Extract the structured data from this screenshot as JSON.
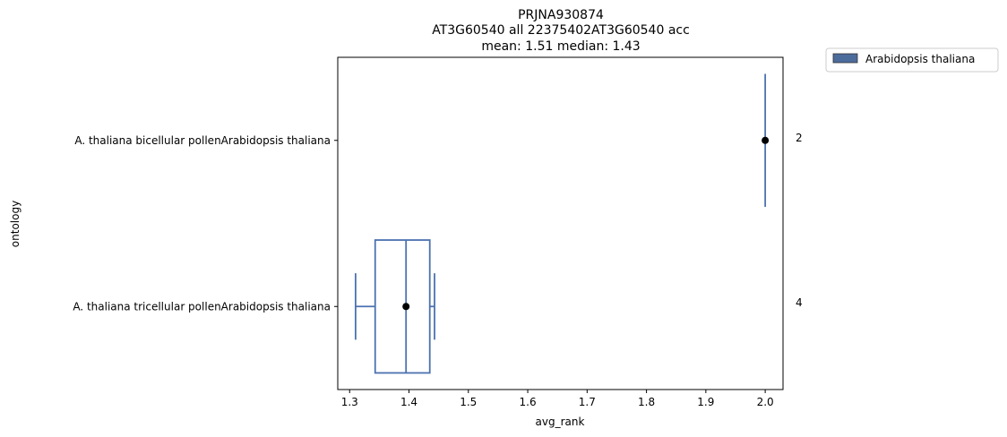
{
  "chart_data": {
    "type": "box",
    "title_lines": [
      "PRJNA930874",
      "AT3G60540 all 22375402AT3G60540 acc",
      "mean: 1.51 median: 1.43"
    ],
    "xlabel": "avg_rank",
    "ylabel": "ontology",
    "xlim": [
      1.28,
      2.03
    ],
    "xticks": [
      "1.3",
      "1.4",
      "1.5",
      "1.6",
      "1.7",
      "1.8",
      "1.9",
      "2.0"
    ],
    "categories": [
      "A. thaliana bicellular pollenArabidopsis thaliana",
      "A. thaliana tricellular pollenArabidopsis thaliana"
    ],
    "counts": [
      "2",
      "4"
    ],
    "legend": {
      "position": "outside-top-right",
      "entries": [
        "Arabidopsis thaliana"
      ]
    },
    "colors": {
      "series": "#4c72b0",
      "legend_fill": "#4c6c9c",
      "point": "#000000"
    },
    "boxes": [
      {
        "category": "A. thaliana bicellular pollenArabidopsis thaliana",
        "whisker_low": 2.0,
        "q1": 2.0,
        "median": 2.0,
        "q3": 2.0,
        "whisker_high": 2.0,
        "mean": 2.0,
        "errorbar": true
      },
      {
        "category": "A. thaliana tricellular pollenArabidopsis thaliana",
        "whisker_low": 1.31,
        "q1": 1.343,
        "median": 1.395,
        "q3": 1.435,
        "whisker_high": 1.443,
        "mean": 1.395,
        "errorbar": false
      }
    ]
  }
}
